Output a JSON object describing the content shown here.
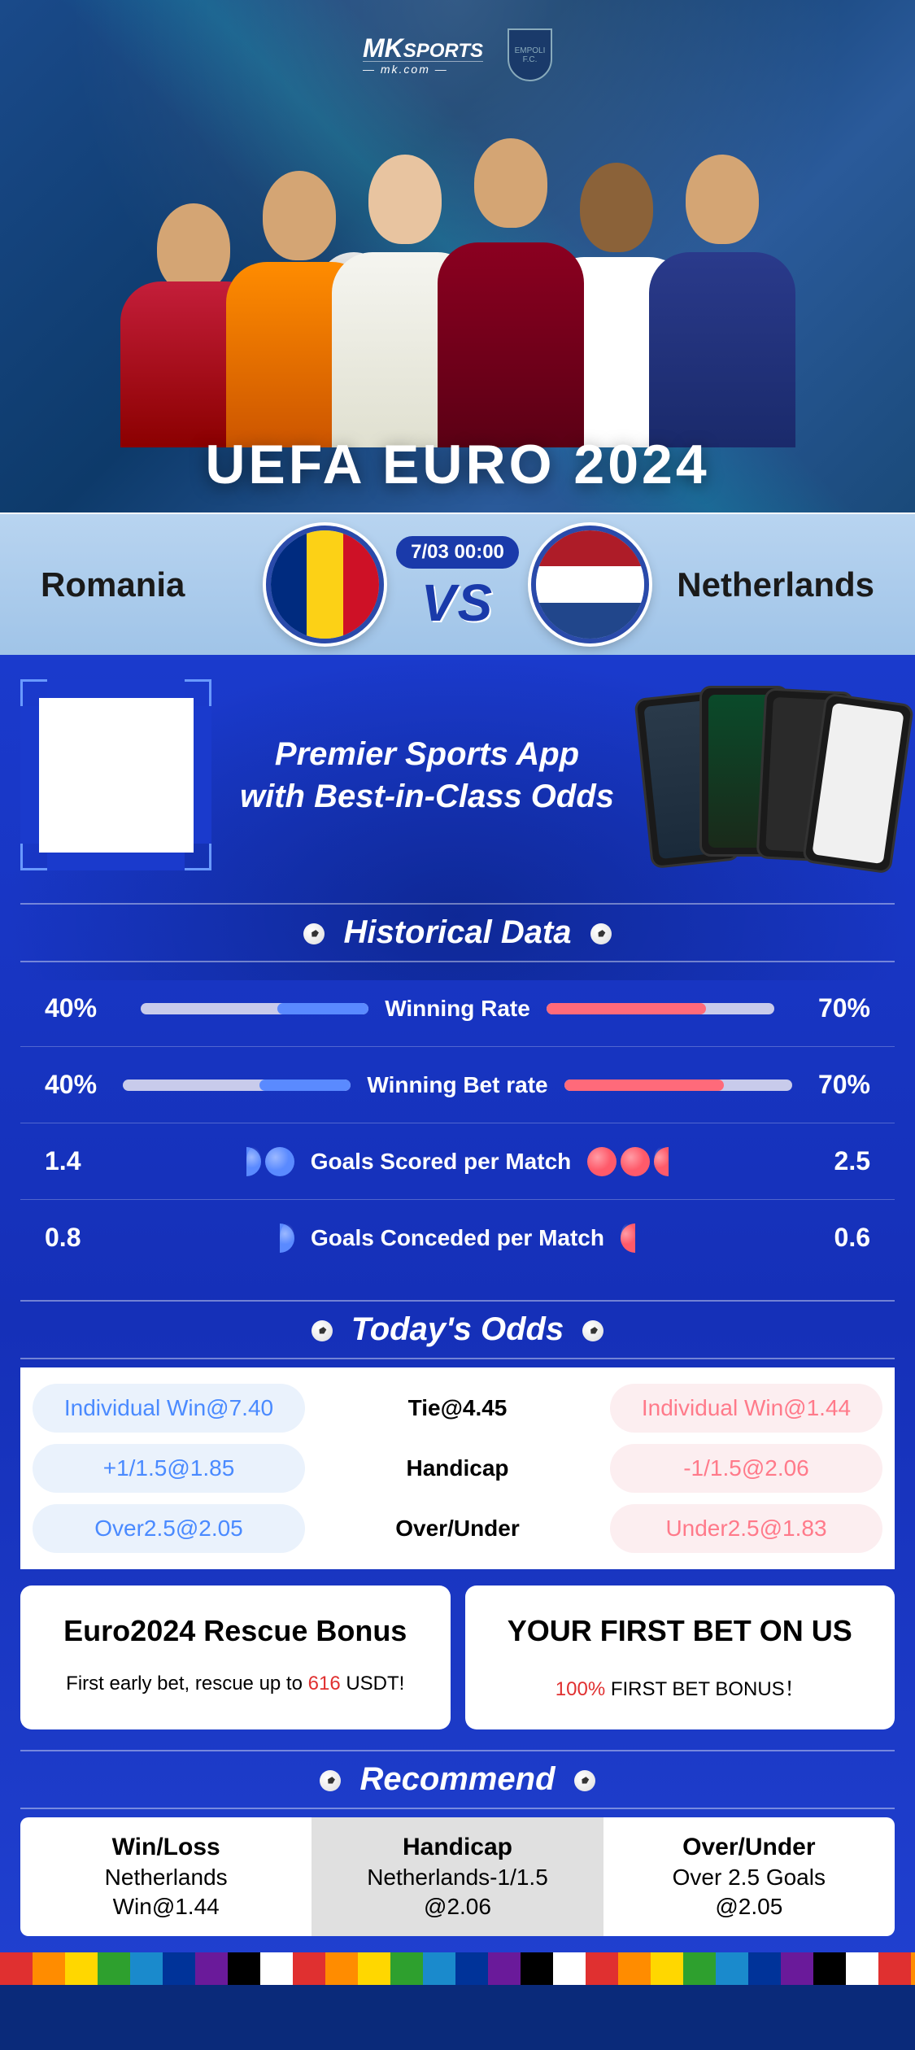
{
  "brand": {
    "name": "MK",
    "tag": "SPORTS",
    "sub": "— mk.com —",
    "crest": "EMPOLI F.C."
  },
  "hero_title": "UEFA EURO 2024",
  "match": {
    "team_a": "Romania",
    "team_b": "Netherlands",
    "datetime": "7/03 00:00",
    "vs": "VS",
    "flag_a_colors": [
      "#002b7f",
      "#fcd116",
      "#ce1126"
    ],
    "flag_b_colors": [
      "#ae1c28",
      "#ffffff",
      "#21468b"
    ]
  },
  "promo": {
    "line1": "Premier Sports App",
    "line2": "with Best-in-Class Odds"
  },
  "sections": {
    "historical": "Historical Data",
    "odds": "Today's Odds",
    "recommend": "Recommend"
  },
  "historical": [
    {
      "label": "Winning Rate",
      "left_val": "40%",
      "right_val": "70%",
      "left_pct": 40,
      "right_pct": 70,
      "type": "bar"
    },
    {
      "label": "Winning Bet rate",
      "left_val": "40%",
      "right_val": "70%",
      "left_pct": 40,
      "right_pct": 70,
      "type": "bar"
    },
    {
      "label": "Goals Scored per Match",
      "left_val": "1.4",
      "right_val": "2.5",
      "left_balls": 1.4,
      "right_balls": 2.5,
      "type": "balls"
    },
    {
      "label": "Goals Conceded per Match",
      "left_val": "0.8",
      "right_val": "0.6",
      "left_balls": 0.8,
      "right_balls": 0.6,
      "type": "balls"
    }
  ],
  "odds": [
    {
      "left": "Individual Win@7.40",
      "mid": "Tie@4.45",
      "right": "Individual Win@1.44"
    },
    {
      "left": "+1/1.5@1.85",
      "mid": "Handicap",
      "right": "-1/1.5@2.06"
    },
    {
      "left": "Over2.5@2.05",
      "mid": "Over/Under",
      "right": "Under2.5@1.83"
    }
  ],
  "bonuses": {
    "card1_title": "Euro2024 Rescue Bonus",
    "card1_text_a": "First early bet, rescue up to ",
    "card1_text_b": "616",
    "card1_text_c": " USDT!",
    "card2_title": "YOUR FIRST BET ON US",
    "card2_text_a": "100%",
    "card2_text_b": " FIRST BET BONUS！"
  },
  "recommend": [
    {
      "title": "Win/Loss",
      "sub1": "Netherlands",
      "sub2": "Win@1.44",
      "active": false
    },
    {
      "title": "Handicap",
      "sub1": "Netherlands-1/1.5",
      "sub2": "@2.06",
      "active": true
    },
    {
      "title": "Over/Under",
      "sub1": "Over 2.5 Goals",
      "sub2": "@2.05",
      "active": false
    }
  ],
  "colors": {
    "bar_left": "#5a8aff",
    "bar_right": "#ff6a7a",
    "bg_main": "#1a3acc"
  }
}
